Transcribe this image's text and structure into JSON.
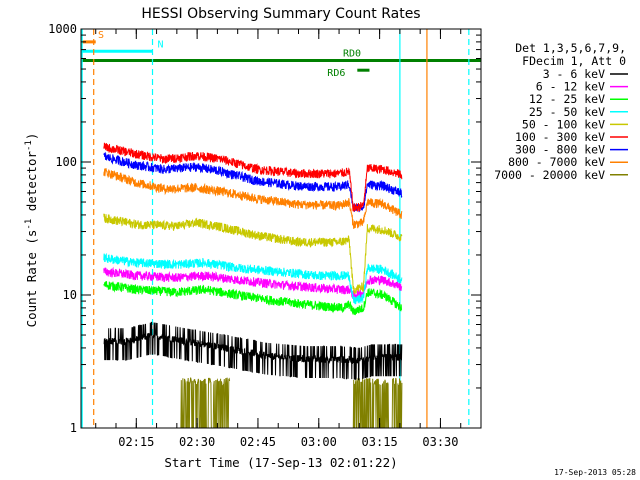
{
  "chart_data": {
    "type": "line",
    "title": "HESSI Observing Summary Count Rates",
    "xlabel": "Start Time (17-Sep-13 02:01:22)",
    "ylabel": "Count Rate (s",
    "ylabel_sup": "-1",
    "ylabel_mid": " detector",
    "ylabel_sup2": "-1",
    "ylabel_end": ")",
    "y_scale": "log",
    "ylim": [
      1,
      1000
    ],
    "xlim": [
      "02:01:22",
      "03:40:00"
    ],
    "x_ticks": [
      "02:15",
      "02:30",
      "02:45",
      "03:00",
      "03:15",
      "03:30"
    ],
    "y_ticks": [
      "1",
      "10",
      "100",
      "1000"
    ],
    "grid": false,
    "legend_position": "right",
    "legend_header": [
      "Det 1,3,5,6,7,9,",
      "FDecim 1, Att 0"
    ],
    "timestamp": "17-Sep-2013 05:28",
    "annotations": [
      {
        "label": "S",
        "color": "#ff8000",
        "x_start": "02:01:22",
        "x_end": "02:05:00",
        "level": 800
      },
      {
        "label": "N",
        "color": "#00ffff",
        "x_start": "02:01:22",
        "x_end": "02:19:00",
        "level": 680
      },
      {
        "label": "RD0",
        "color": "#008000",
        "x_start": "02:01:22",
        "x_end": "03:40:00",
        "level": 580
      },
      {
        "label": "RD6",
        "color": "#008000",
        "x_start": "03:09:30",
        "x_end": "03:12:30",
        "level": 490
      }
    ],
    "vertical_markers": [
      {
        "time": "02:04:30",
        "color": "#ff8000",
        "style": "dashed"
      },
      {
        "time": "02:19:00",
        "color": "#00ffff",
        "style": "dashed"
      },
      {
        "time": "03:20:00",
        "color": "#00ffff",
        "style": "solid"
      },
      {
        "time": "03:26:40",
        "color": "#ff8000",
        "style": "solid"
      },
      {
        "time": "03:37:00",
        "color": "#00ffff",
        "style": "dashed"
      }
    ],
    "series": [
      {
        "name": "3 - 6 keV",
        "color": "#000000",
        "points": [
          [
            "02:07:00",
            4.5
          ],
          [
            "02:13:00",
            4.5
          ],
          [
            "02:19:00",
            5
          ],
          [
            "02:27:00",
            4.5
          ],
          [
            "02:37:00",
            4
          ],
          [
            "02:47:00",
            3.5
          ],
          [
            "02:57:00",
            3.3
          ],
          [
            "03:05:00",
            3.3
          ],
          [
            "03:10:00",
            3.2
          ],
          [
            "03:13:00",
            3.4
          ],
          [
            "03:18:00",
            3.4
          ],
          [
            "03:20:30",
            3.4
          ]
        ]
      },
      {
        "name": "6 - 12 keV",
        "color": "#ff00ff",
        "points": [
          [
            "02:07:00",
            15
          ],
          [
            "02:15:00",
            14
          ],
          [
            "02:25:00",
            13.5
          ],
          [
            "02:32:00",
            14
          ],
          [
            "02:40:00",
            13
          ],
          [
            "02:50:00",
            12
          ],
          [
            "03:00:00",
            11.3
          ],
          [
            "03:06:00",
            11
          ],
          [
            "03:07:30",
            11
          ],
          [
            "03:08:30",
            10
          ],
          [
            "03:11:00",
            10.5
          ],
          [
            "03:12:00",
            13
          ],
          [
            "03:16:00",
            13
          ],
          [
            "03:20:30",
            11.5
          ]
        ]
      },
      {
        "name": "12 - 25 keV",
        "color": "#00ff00",
        "points": [
          [
            "02:07:00",
            12
          ],
          [
            "02:15:00",
            11
          ],
          [
            "02:25:00",
            10.5
          ],
          [
            "02:32:00",
            11
          ],
          [
            "02:40:00",
            10
          ],
          [
            "02:50:00",
            9
          ],
          [
            "03:00:00",
            8.3
          ],
          [
            "03:06:00",
            8
          ],
          [
            "03:07:30",
            8.5
          ],
          [
            "03:08:30",
            7.5
          ],
          [
            "03:11:00",
            8
          ],
          [
            "03:12:00",
            10.5
          ],
          [
            "03:16:00",
            10
          ],
          [
            "03:20:30",
            8
          ]
        ]
      },
      {
        "name": "25 - 50 keV",
        "color": "#00ffff",
        "points": [
          [
            "02:07:00",
            19
          ],
          [
            "02:15:00",
            17.5
          ],
          [
            "02:25:00",
            17
          ],
          [
            "02:32:00",
            17.5
          ],
          [
            "02:40:00",
            16
          ],
          [
            "02:50:00",
            15
          ],
          [
            "03:00:00",
            14
          ],
          [
            "03:06:00",
            14
          ],
          [
            "03:07:30",
            14
          ],
          [
            "03:08:30",
            9
          ],
          [
            "03:11:00",
            9.5
          ],
          [
            "03:12:00",
            16
          ],
          [
            "03:16:00",
            15.5
          ],
          [
            "03:20:30",
            13
          ]
        ]
      },
      {
        "name": "50 - 100 keV",
        "color": "#c8c800",
        "points": [
          [
            "02:07:00",
            38
          ],
          [
            "02:15:00",
            34
          ],
          [
            "02:25:00",
            33
          ],
          [
            "02:30:00",
            35
          ],
          [
            "02:35:00",
            33
          ],
          [
            "02:45:00",
            28
          ],
          [
            "02:55:00",
            25
          ],
          [
            "03:05:00",
            25
          ],
          [
            "03:07:30",
            26
          ],
          [
            "03:08:30",
            11
          ],
          [
            "03:11:00",
            11.5
          ],
          [
            "03:12:00",
            32
          ],
          [
            "03:16:00",
            31
          ],
          [
            "03:20:30",
            27
          ]
        ]
      },
      {
        "name": "100 - 300 keV",
        "color": "#ff0000",
        "points": [
          [
            "02:07:00",
            130
          ],
          [
            "02:15:00",
            115
          ],
          [
            "02:22:00",
            105
          ],
          [
            "02:30:00",
            112
          ],
          [
            "02:36:00",
            105
          ],
          [
            "02:45:00",
            88
          ],
          [
            "02:55:00",
            82
          ],
          [
            "03:05:00",
            82
          ],
          [
            "03:07:30",
            85
          ],
          [
            "03:08:30",
            45
          ],
          [
            "03:11:00",
            47
          ],
          [
            "03:12:00",
            90
          ],
          [
            "03:16:00",
            88
          ],
          [
            "03:20:30",
            80
          ]
        ]
      },
      {
        "name": "300 - 800 keV",
        "color": "#0000ff",
        "points": [
          [
            "02:07:00",
            110
          ],
          [
            "02:15:00",
            95
          ],
          [
            "02:22:00",
            88
          ],
          [
            "02:30:00",
            92
          ],
          [
            "02:36:00",
            85
          ],
          [
            "02:45:00",
            72
          ],
          [
            "02:55:00",
            66
          ],
          [
            "03:05:00",
            65
          ],
          [
            "03:07:30",
            68
          ],
          [
            "03:08:30",
            45
          ],
          [
            "03:11:00",
            46
          ],
          [
            "03:12:00",
            68
          ],
          [
            "03:16:00",
            66
          ],
          [
            "03:20:30",
            58
          ]
        ]
      },
      {
        "name": "800 - 7000 keV",
        "color": "#ff8000",
        "points": [
          [
            "02:07:00",
            85
          ],
          [
            "02:15:00",
            70
          ],
          [
            "02:22:00",
            63
          ],
          [
            "02:30:00",
            64
          ],
          [
            "02:36:00",
            60
          ],
          [
            "02:45:00",
            53
          ],
          [
            "02:55:00",
            48
          ],
          [
            "03:05:00",
            47
          ],
          [
            "03:07:30",
            50
          ],
          [
            "03:08:30",
            34
          ],
          [
            "03:11:00",
            35
          ],
          [
            "03:12:00",
            50
          ],
          [
            "03:16:00",
            48
          ],
          [
            "03:20:30",
            40
          ]
        ]
      },
      {
        "name": "7000 - 20000 keV",
        "color": "#808000",
        "points": [
          [
            "02:15:00",
            1
          ],
          [
            "02:19:00",
            1
          ],
          [
            "02:25:00",
            1
          ],
          [
            "02:30:00",
            1
          ],
          [
            "02:32:00",
            1
          ],
          [
            "03:07:30",
            1
          ],
          [
            "03:11:00",
            1
          ],
          [
            "03:16:00",
            1
          ],
          [
            "03:20:30",
            1
          ]
        ]
      }
    ]
  }
}
